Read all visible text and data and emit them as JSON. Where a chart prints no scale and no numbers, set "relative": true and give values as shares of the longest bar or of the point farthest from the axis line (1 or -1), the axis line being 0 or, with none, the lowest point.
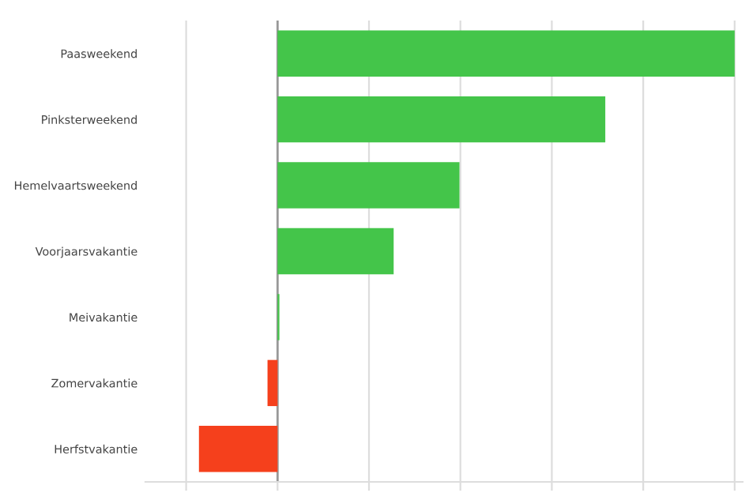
{
  "chart_data": {
    "type": "bar",
    "orientation": "horizontal",
    "relative": true,
    "grid": "x",
    "categories": [
      "Paasweekend",
      "Pinksterweekend",
      "Hemelvaartsweekend",
      "Voorjaarsvakantie",
      "Meivakantie",
      "Zomervakantie",
      "Herfstvakantie"
    ],
    "values": [
      1,
      0.717,
      0.398,
      0.254,
      0.004,
      -0.022,
      -0.172
    ],
    "colors": [
      "#44c54a",
      "#44c54a",
      "#44c54a",
      "#44c54a",
      "#44c54a",
      "#f5401c",
      "#f5401c"
    ]
  }
}
